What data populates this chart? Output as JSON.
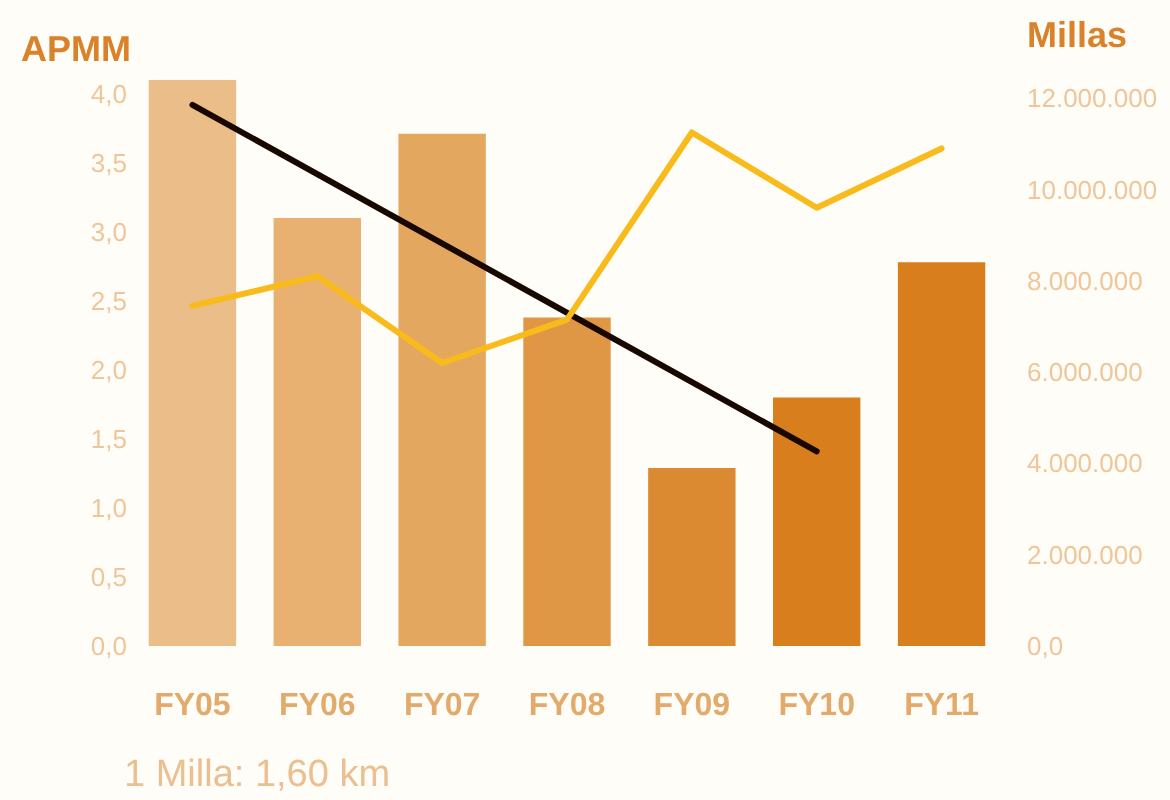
{
  "chart_data": {
    "type": "bar",
    "ylabel": "APMM",
    "y2label": "Millas",
    "categories": [
      "FY05",
      "FY06",
      "FY07",
      "FY08",
      "FY09",
      "FY10",
      "FY11"
    ],
    "series": [
      {
        "colors": [
          "#ebbd88",
          "#e8b172",
          "#e4a75f",
          "#df9745",
          "#dc8a32",
          "#d97e1d",
          "#d97e1d"
        ],
        "values": [
          4.1,
          3.1,
          3.71,
          2.38,
          1.29,
          1.8,
          2.78
        ]
      },
      {
        "type": "line",
        "color": "#f9bb1b",
        "axis": "y2",
        "values": [
          7450000,
          8100000,
          6200000,
          7150000,
          11250000,
          9600000,
          10900000
        ]
      },
      {
        "type": "line",
        "color": "#180800",
        "x": [
          "FY05",
          "FY10"
        ],
        "values": [
          3.92,
          1.41
        ]
      }
    ],
    "ylim": [
      0,
      4.1
    ],
    "yticks": [
      {
        "value": 0,
        "label": "0,0"
      },
      {
        "value": 0.5,
        "label": "0,5"
      },
      {
        "value": 1,
        "label": "1,0"
      },
      {
        "value": 1.5,
        "label": "1,5"
      },
      {
        "value": 2,
        "label": "2,0"
      },
      {
        "value": 2.5,
        "label": "2,5"
      },
      {
        "value": 3,
        "label": "3,0"
      },
      {
        "value": 3.5,
        "label": "3,5"
      },
      {
        "value": 4,
        "label": "4,0"
      }
    ],
    "y2lim": [
      0,
      12400000
    ],
    "y2ticks": [
      {
        "value": 0,
        "label": "0,0"
      },
      {
        "value": 2000000,
        "label": "2.000.000"
      },
      {
        "value": 4000000,
        "label": "4.000.000"
      },
      {
        "value": 6000000,
        "label": "6.000.000"
      },
      {
        "value": 8000000,
        "label": "8.000.000"
      },
      {
        "value": 10000000,
        "label": "10.000.000"
      },
      {
        "value": 12000000,
        "label": "12.000.000"
      }
    ],
    "annotations": [
      "1 Milla: 1,60 km"
    ],
    "grid": false
  }
}
